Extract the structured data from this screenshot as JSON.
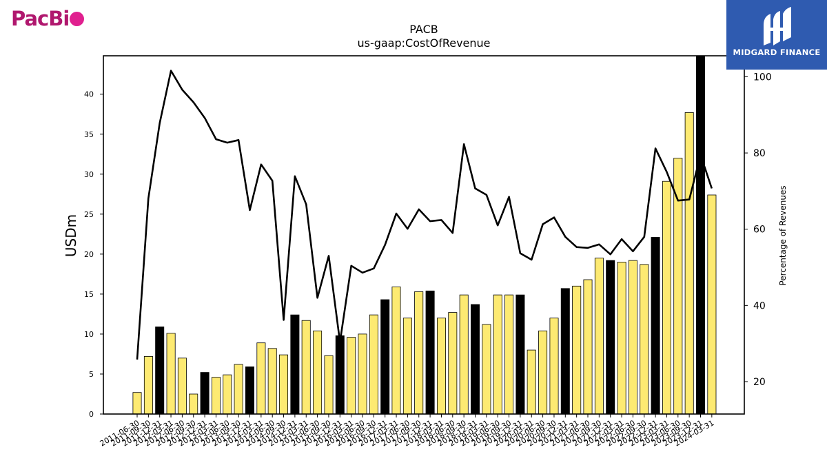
{
  "brand": {
    "company": "PacBi",
    "publisher": "MIDGARD FINANCE"
  },
  "colors": {
    "bar_normal": "#fdea72",
    "bar_highlight": "#000000",
    "line": "#000000"
  },
  "chart_data": {
    "type": "bar",
    "title": "PACB",
    "subtitle": "us-gaap:CostOfRevenue",
    "ylabel": "USDm",
    "y2label": "Percentage of Revenues",
    "ylim": [
      0,
      44.8
    ],
    "y2lim": [
      11.5,
      105.5
    ],
    "yticks": [
      0,
      5,
      10,
      15,
      20,
      25,
      30,
      35,
      40
    ],
    "y2ticks": [
      20,
      40,
      60,
      80,
      100
    ],
    "grid": false,
    "categories": [
      "2011-06-30",
      "2011-09-30",
      "2011-12-31",
      "2012-03-31",
      "2012-06-30",
      "2012-09-30",
      "2012-12-31",
      "2013-03-31",
      "2013-06-30",
      "2013-09-30",
      "2013-12-31",
      "2014-03-31",
      "2014-06-30",
      "2014-09-30",
      "2014-12-31",
      "2015-03-31",
      "2015-06-30",
      "2015-09-30",
      "2015-12-31",
      "2016-03-31",
      "2016-06-30",
      "2016-09-30",
      "2016-12-31",
      "2017-03-31",
      "2017-06-30",
      "2017-09-30",
      "2017-12-31",
      "2018-03-31",
      "2018-06-30",
      "2018-09-30",
      "2018-12-31",
      "2019-03-31",
      "2019-06-30",
      "2019-09-30",
      "2019-12-31",
      "2020-03-31",
      "2020-06-30",
      "2020-09-30",
      "2020-12-31",
      "2021-03-31",
      "2021-06-30",
      "2021-09-30",
      "2021-12-31",
      "2022-03-31",
      "2022-06-30",
      "2022-09-30",
      "2022-12-31",
      "2023-03-31",
      "2023-06-30",
      "2023-09-30",
      "2023-12-31",
      "2024-03-31"
    ],
    "series": [
      {
        "kind": "bar",
        "values": [
          2.7,
          7.2,
          10.9,
          10.1,
          7.0,
          2.5,
          5.2,
          4.6,
          4.9,
          6.2,
          5.9,
          8.9,
          8.2,
          7.4,
          12.4,
          11.7,
          10.4,
          7.3,
          9.8,
          9.6,
          10.0,
          12.4,
          14.3,
          15.9,
          12.0,
          15.3,
          15.4,
          12.0,
          12.7,
          14.9,
          13.7,
          11.2,
          14.9,
          14.9,
          14.9,
          8.0,
          10.4,
          12.0,
          15.7,
          16.0,
          16.8,
          19.5,
          19.2,
          19.0,
          19.2,
          18.7,
          22.1,
          29.1,
          32.0,
          37.7,
          45.0,
          27.4
        ],
        "highlight": [
          false,
          false,
          true,
          false,
          false,
          false,
          true,
          false,
          false,
          false,
          true,
          false,
          false,
          false,
          true,
          false,
          false,
          false,
          true,
          false,
          false,
          false,
          true,
          false,
          false,
          false,
          true,
          false,
          false,
          false,
          true,
          false,
          false,
          false,
          true,
          false,
          false,
          false,
          true,
          false,
          false,
          false,
          true,
          false,
          false,
          false,
          true,
          false,
          false,
          false,
          true,
          false
        ]
      },
      {
        "kind": "line",
        "axis": "right",
        "values": [
          25.8,
          68.1,
          87.8,
          101.6,
          96.6,
          93.3,
          89.2,
          83.6,
          82.7,
          83.4,
          65.0,
          77.0,
          72.7,
          36.2,
          73.9,
          66.5,
          42.0,
          53.0,
          30.4,
          50.4,
          48.6,
          49.7,
          55.9,
          64.1,
          60.1,
          65.2,
          62.1,
          62.4,
          59.0,
          82.3,
          70.7,
          69.0,
          61.0,
          68.5,
          53.7,
          52.0,
          61.3,
          63.1,
          58.0,
          55.3,
          55.1,
          56.0,
          53.4,
          57.4,
          54.2,
          58.0,
          81.2,
          75.0,
          67.5,
          67.8,
          79.5,
          70.7
        ]
      }
    ]
  }
}
